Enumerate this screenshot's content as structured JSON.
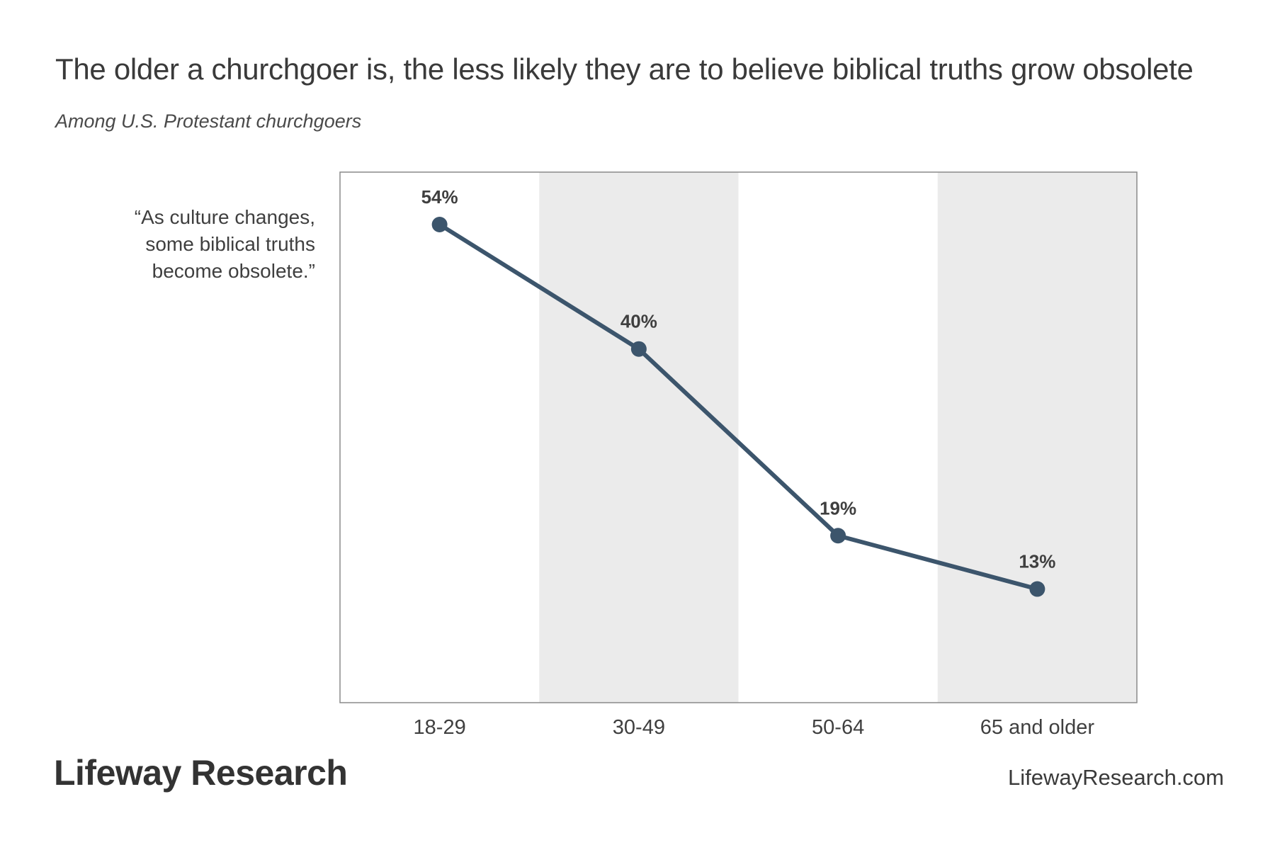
{
  "header": {
    "title": "The older a churchgoer is, the less likely they are to believe biblical truths grow obsolete",
    "subtitle": "Among U.S. Protestant churchgoers"
  },
  "series_label": {
    "lines": [
      "“As culture changes,",
      "some biblical truths",
      "become obsolete.”"
    ]
  },
  "chart_data": {
    "type": "line",
    "categories": [
      "18-29",
      "30-49",
      "50-64",
      "65 and older"
    ],
    "series": [
      {
        "values": [
          54,
          40,
          19,
          13
        ]
      }
    ],
    "data_labels": [
      "54%",
      "40%",
      "19%",
      "13%"
    ],
    "title": "The older a churchgoer is, the less likely they are to believe biblical truths grow obsolete",
    "subtitle": "Among U.S. Protestant churchgoers",
    "xlabel": "",
    "ylabel": "",
    "grid": false,
    "colors": {
      "line": "#3c556c",
      "band_alt": "#ebebeb",
      "frame": "#8a8a8a",
      "label": "#3f3f3f"
    }
  },
  "footer": {
    "brand": "Lifeway Research",
    "url": "LifewayResearch.com"
  }
}
